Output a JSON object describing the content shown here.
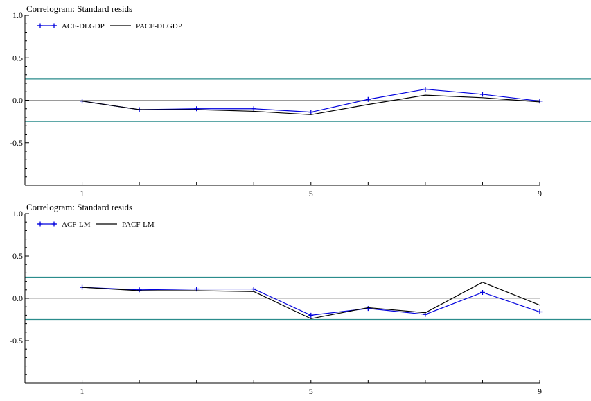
{
  "colors": {
    "acf": "#0000dd",
    "pacf": "#000000",
    "band": "#2a8c8c",
    "zero": "#9a9a9a",
    "axis": "#000000"
  },
  "chart_data": [
    {
      "type": "line",
      "title": "Correlogram: Standard resids",
      "xlabel": "",
      "ylabel": "",
      "x": [
        1,
        2,
        3,
        4,
        5,
        6,
        7,
        8,
        9
      ],
      "xticks": [
        1,
        5,
        9
      ],
      "xlim": [
        0,
        9
      ],
      "ylim": [
        -1.0,
        1.0
      ],
      "yticks": [
        1.0,
        0.5,
        0.0,
        -0.5
      ],
      "ytick_labels": [
        "1.0",
        "0.5",
        "0.0",
        "-0.5"
      ],
      "bands": [
        0.25,
        -0.25
      ],
      "series": [
        {
          "name": "ACF-DLGDP",
          "marker": "+",
          "values": [
            -0.01,
            -0.11,
            -0.1,
            -0.1,
            -0.14,
            0.01,
            0.13,
            0.07,
            -0.01
          ]
        },
        {
          "name": "PACF-DLGDP",
          "marker": "",
          "values": [
            -0.01,
            -0.11,
            -0.11,
            -0.13,
            -0.17,
            -0.05,
            0.06,
            0.03,
            -0.02
          ]
        }
      ],
      "legend_position": "top-left"
    },
    {
      "type": "line",
      "title": "Correlogram: Standard resids",
      "xlabel": "",
      "ylabel": "",
      "x": [
        1,
        2,
        3,
        4,
        5,
        6,
        7,
        8,
        9
      ],
      "xticks": [
        1,
        5,
        9
      ],
      "xlim": [
        0,
        9
      ],
      "ylim": [
        -1.0,
        1.0
      ],
      "yticks": [
        1.0,
        0.5,
        0.0,
        -0.5
      ],
      "ytick_labels": [
        "1.0",
        "0.5",
        "0.0",
        "-0.5"
      ],
      "bands": [
        0.25,
        -0.25
      ],
      "series": [
        {
          "name": "ACF-LM",
          "marker": "+",
          "values": [
            0.13,
            0.1,
            0.11,
            0.11,
            -0.2,
            -0.12,
            -0.19,
            0.07,
            -0.16
          ]
        },
        {
          "name": "PACF-LM",
          "marker": "",
          "values": [
            0.13,
            0.09,
            0.09,
            0.08,
            -0.24,
            -0.11,
            -0.17,
            0.19,
            -0.08
          ]
        }
      ],
      "legend_position": "top-left"
    }
  ]
}
